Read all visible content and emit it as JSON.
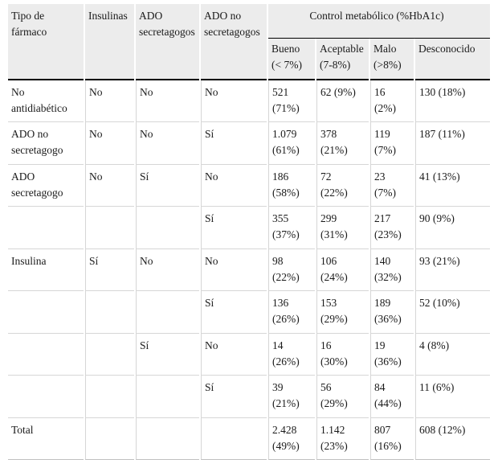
{
  "colors": {
    "header_bg": "#ececec",
    "grid_line": "#d6d6d6",
    "strong_line": "#000000",
    "bottom_line": "#c0c0c0",
    "text": "#1a1a1a"
  },
  "table": {
    "column_headers": [
      "Tipo de fármaco",
      "Insulinas",
      "ADO secretagogos",
      "ADO no secretagogos"
    ],
    "group_header": "Control metabólico (%HbA1c)",
    "sub_headers": [
      "Bueno (< 7%)",
      "Aceptable (7-8%)",
      "Malo (>8%)",
      "Desconocido"
    ],
    "rows": [
      [
        "No antidiabético",
        "No",
        "No",
        "No",
        "521 (71%)",
        "62 (9%)",
        "16 (2%)",
        "130 (18%)"
      ],
      [
        "ADO no secretagogo",
        "No",
        "No",
        "Sí",
        "1.079 (61%)",
        "378 (21%)",
        "119 (7%)",
        "187 (11%)"
      ],
      [
        "ADO secretagogo",
        "No",
        "Sí",
        "No",
        "186 (58%)",
        "72 (22%)",
        "23 (7%)",
        "41 (13%)"
      ],
      [
        "",
        "",
        "",
        "Sí",
        "355 (37%)",
        "299 (31%)",
        "217 (23%)",
        "90 (9%)"
      ],
      [
        "Insulina",
        "Sí",
        "No",
        "No",
        "98 (22%)",
        "106 (24%)",
        "140 (32%)",
        "93 (21%)"
      ],
      [
        "",
        "",
        "",
        "Sí",
        "136 (26%)",
        "153 (29%)",
        "189 (36%)",
        "52 (10%)"
      ],
      [
        "",
        "",
        "Sí",
        "No",
        "14 (26%)",
        "16 (30%)",
        "19 (36%)",
        "4 (8%)"
      ],
      [
        "",
        "",
        "",
        "Sí",
        "39 (21%)",
        "56 (29%)",
        "84 (44%)",
        "11 (6%)"
      ],
      [
        "Total",
        "",
        "",
        "",
        "2.428 (49%)",
        "1.142 (23%)",
        "807 (16%)",
        "608 (12%)"
      ]
    ]
  }
}
